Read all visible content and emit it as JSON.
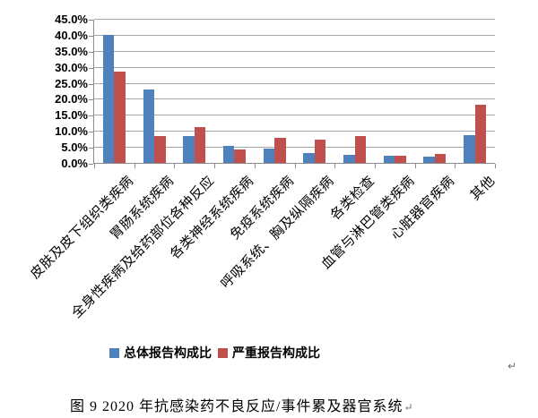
{
  "chart_data": {
    "type": "bar",
    "title": "",
    "categories": [
      "皮肤及皮下组织类疾病",
      "胃肠系统疾病",
      "全身性疾病及给药部位各种反应",
      "各类神经系统疾病",
      "免疫系统疾病",
      "呼吸系统、胸及纵隔疾病",
      "各类检查",
      "血管与淋巴管类疾病",
      "心脏器官疾病",
      "其他"
    ],
    "series": [
      {
        "name": "总体报告构成比",
        "color": "#4F81BD",
        "values": [
          40.2,
          23.1,
          8.4,
          5.4,
          4.4,
          3.0,
          2.6,
          2.2,
          2.0,
          8.7
        ]
      },
      {
        "name": "严重报告构成比",
        "color": "#C0504D",
        "values": [
          28.7,
          8.4,
          11.2,
          4.3,
          8.0,
          7.3,
          8.5,
          2.2,
          2.8,
          18.4
        ]
      }
    ],
    "xlabel": "",
    "ylabel": "",
    "ylim": [
      0,
      45
    ],
    "ytick_step": 5,
    "ytick_labels": [
      "45.0%",
      "40.0%",
      "35.0%",
      "30.0%",
      "25.0%",
      "20.0%",
      "15.0%",
      "10.0%",
      "5.0%",
      "0.0%"
    ],
    "grid": true,
    "legend_position": "bottom"
  },
  "caption": {
    "text": "图 9  2020 年抗感染药不良反应/事件累及器官系统",
    "return_mark": "↵"
  },
  "stray_return_mark": "↵",
  "colors": {
    "series_total": "#4F81BD",
    "series_serious": "#C0504D",
    "gridline": "#a6a6a6",
    "axis": "#8c8c8c",
    "text": "#000000",
    "return_mark": "#6e6e6e"
  }
}
